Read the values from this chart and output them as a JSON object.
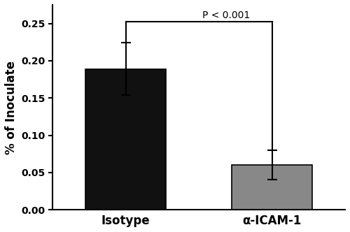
{
  "categories": [
    "Isotype",
    "α-ICAM-1"
  ],
  "values": [
    0.189,
    0.06
  ],
  "errors": [
    0.035,
    0.02
  ],
  "bar_colors": [
    "#111111",
    "#888888"
  ],
  "ylabel": "% of Inoculate",
  "ylim": [
    0,
    0.275
  ],
  "yticks": [
    0.0,
    0.05,
    0.1,
    0.15,
    0.2,
    0.25
  ],
  "ytick_labels": [
    "0.00",
    "0.05",
    "0.10",
    "0.15",
    "0.20",
    "0.25"
  ],
  "bar_width": 0.55,
  "significance_text": "P < 0.001",
  "background_color": "#ffffff",
  "tick_fontsize": 10,
  "label_fontsize": 12,
  "sig_fontsize": 10,
  "cap_size": 5
}
